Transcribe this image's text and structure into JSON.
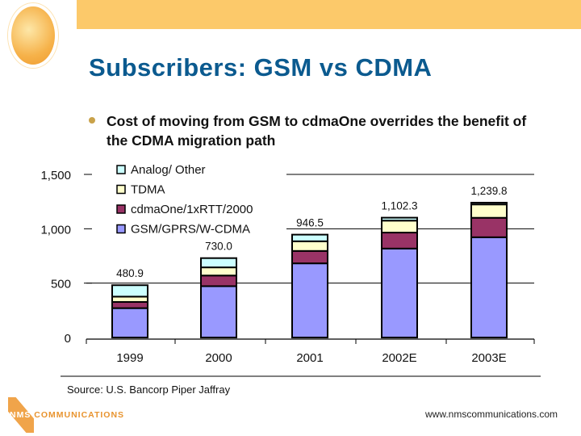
{
  "title": "Subscribers: GSM vs CDMA",
  "bullet": "Cost of moving from GSM to cdmaOne overrides the benefit of the CDMA migration path",
  "source": "Source: U.S. Bancorp Piper Jaffray",
  "footer_url": "www.nmscommunications.com",
  "logo_text": "NMS COMMUNICATIONS",
  "chart_data": {
    "type": "bar",
    "stacked": true,
    "categories": [
      "1999",
      "2000",
      "2001",
      "2002E",
      "2003E"
    ],
    "totals": [
      "480.9",
      "730.0",
      "946.5",
      "1,102.3",
      "1,239.8"
    ],
    "series": [
      {
        "name": "GSM/GPRS/W-CDMA",
        "color": "#9999ff",
        "values": [
          270,
          472,
          682,
          818,
          922
        ]
      },
      {
        "name": "cdmaOne/1xRTT/2000",
        "color": "#993366",
        "values": [
          57,
          98,
          114,
          147,
          179
        ]
      },
      {
        "name": "TDMA",
        "color": "#ffffcc",
        "values": [
          49,
          75,
          89,
          110,
          123
        ]
      },
      {
        "name": "Analog/ Other",
        "color": "#ccffff",
        "values": [
          105,
          85,
          61,
          27,
          16
        ]
      }
    ],
    "yticks": [
      "0",
      "500",
      "1,000",
      "1,500"
    ],
    "ylim": [
      0,
      1500
    ],
    "legend": "top-left",
    "grid": true
  }
}
